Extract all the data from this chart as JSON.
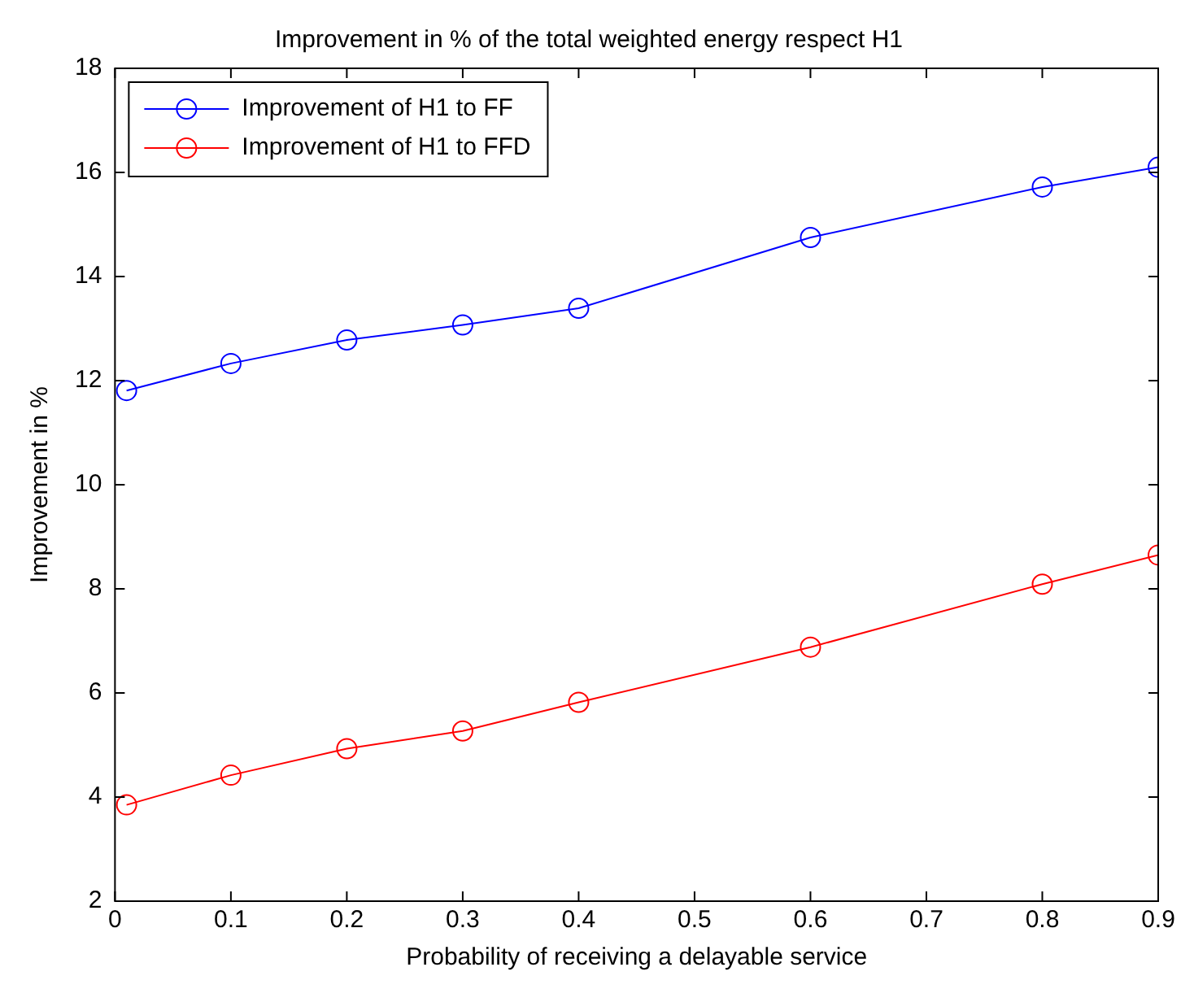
{
  "chart_data": {
    "type": "line",
    "title": "Improvement in % of the total weighted energy respect H1",
    "xlabel": "Probability of receiving a delayable service",
    "ylabel": "Improvement in %",
    "x": [
      0.01,
      0.1,
      0.2,
      0.3,
      0.4,
      0.6,
      0.8,
      0.9
    ],
    "series": [
      {
        "name": "Improvement of H1 to FF",
        "color": "#0000ff",
        "values": [
          11.81,
          12.33,
          12.78,
          13.07,
          13.39,
          14.75,
          15.72,
          16.1
        ]
      },
      {
        "name": "Improvement of H1 to FFD",
        "color": "#ff0000",
        "values": [
          3.85,
          4.42,
          4.93,
          5.27,
          5.82,
          6.88,
          8.09,
          8.65
        ]
      }
    ],
    "xlim": [
      0,
      0.9
    ],
    "xticks": [
      0,
      0.1,
      0.2,
      0.3,
      0.4,
      0.5,
      0.6,
      0.7,
      0.8,
      0.9
    ],
    "ylim": [
      2,
      18
    ],
    "yticks": [
      2,
      4,
      6,
      8,
      10,
      12,
      14,
      16,
      18
    ],
    "grid": false,
    "legend": "top left",
    "marker": "circle",
    "line_style": "solid"
  }
}
